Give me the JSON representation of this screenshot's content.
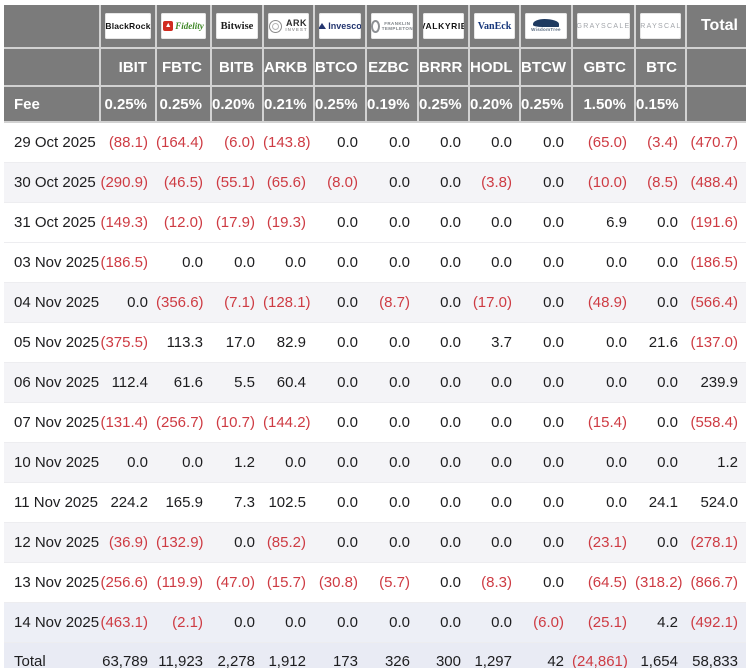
{
  "colors": {
    "header_bg": "#7b7b7b",
    "negative_text": "#ce3b43",
    "value_text": "#1d1d1f",
    "stripe_bg": "#f4f4f7",
    "total_row_bg": "#e9ebf4"
  },
  "chart_data": {
    "type": "table",
    "fee_label": "Fee",
    "total_label": "Total",
    "columns": [
      {
        "ticker": "IBIT",
        "fee": "0.25%",
        "brand": "BlackRock",
        "logo_style": "blackrock"
      },
      {
        "ticker": "FBTC",
        "fee": "0.25%",
        "brand": "Fidelity",
        "logo_style": "fidelity"
      },
      {
        "ticker": "BITB",
        "fee": "0.20%",
        "brand": "Bitwise",
        "logo_style": "bitwise"
      },
      {
        "ticker": "ARKB",
        "fee": "0.21%",
        "brand": "ARK",
        "brand_sub": "INVEST",
        "logo_style": "ark"
      },
      {
        "ticker": "BTCO",
        "fee": "0.25%",
        "brand": "Invesco",
        "logo_style": "invesco"
      },
      {
        "ticker": "EZBC",
        "fee": "0.19%",
        "brand": "FRANKLIN",
        "brand_sub": "TEMPLETON",
        "logo_style": "franklin"
      },
      {
        "ticker": "BRRR",
        "fee": "0.25%",
        "brand": "VALKYRIE",
        "logo_style": "valkyrie"
      },
      {
        "ticker": "HODL",
        "fee": "0.20%",
        "brand": "VanEck",
        "logo_style": "vaneck"
      },
      {
        "ticker": "BTCW",
        "fee": "0.25%",
        "brand": "WisdomTree",
        "logo_style": "wisdomtree"
      },
      {
        "ticker": "GBTC",
        "fee": "1.50%",
        "brand": "GRAYSCALE",
        "logo_style": "grayscale"
      },
      {
        "ticker": "BTC",
        "fee": "0.15%",
        "brand": "GRAYSCALE",
        "logo_style": "grayscale"
      }
    ],
    "rows": [
      {
        "date": "29 Oct 2025",
        "values": [
          "(88.1)",
          "(164.4)",
          "(6.0)",
          "(143.8)",
          "0.0",
          "0.0",
          "0.0",
          "0.0",
          "0.0",
          "(65.0)",
          "(3.4)",
          "(470.7)"
        ]
      },
      {
        "date": "30 Oct 2025",
        "values": [
          "(290.9)",
          "(46.5)",
          "(55.1)",
          "(65.6)",
          "(8.0)",
          "0.0",
          "0.0",
          "(3.8)",
          "0.0",
          "(10.0)",
          "(8.5)",
          "(488.4)"
        ]
      },
      {
        "date": "31 Oct 2025",
        "values": [
          "(149.3)",
          "(12.0)",
          "(17.9)",
          "(19.3)",
          "0.0",
          "0.0",
          "0.0",
          "0.0",
          "0.0",
          "6.9",
          "0.0",
          "(191.6)"
        ]
      },
      {
        "date": "03 Nov 2025",
        "values": [
          "(186.5)",
          "0.0",
          "0.0",
          "0.0",
          "0.0",
          "0.0",
          "0.0",
          "0.0",
          "0.0",
          "0.0",
          "0.0",
          "(186.5)"
        ]
      },
      {
        "date": "04 Nov 2025",
        "values": [
          "0.0",
          "(356.6)",
          "(7.1)",
          "(128.1)",
          "0.0",
          "(8.7)",
          "0.0",
          "(17.0)",
          "0.0",
          "(48.9)",
          "0.0",
          "(566.4)"
        ]
      },
      {
        "date": "05 Nov 2025",
        "values": [
          "(375.5)",
          "113.3",
          "17.0",
          "82.9",
          "0.0",
          "0.0",
          "0.0",
          "3.7",
          "0.0",
          "0.0",
          "21.6",
          "(137.0)"
        ]
      },
      {
        "date": "06 Nov 2025",
        "values": [
          "112.4",
          "61.6",
          "5.5",
          "60.4",
          "0.0",
          "0.0",
          "0.0",
          "0.0",
          "0.0",
          "0.0",
          "0.0",
          "239.9"
        ]
      },
      {
        "date": "07 Nov 2025",
        "values": [
          "(131.4)",
          "(256.7)",
          "(10.7)",
          "(144.2)",
          "0.0",
          "0.0",
          "0.0",
          "0.0",
          "0.0",
          "(15.4)",
          "0.0",
          "(558.4)"
        ]
      },
      {
        "date": "10 Nov 2025",
        "values": [
          "0.0",
          "0.0",
          "1.2",
          "0.0",
          "0.0",
          "0.0",
          "0.0",
          "0.0",
          "0.0",
          "0.0",
          "0.0",
          "1.2"
        ]
      },
      {
        "date": "11 Nov 2025",
        "values": [
          "224.2",
          "165.9",
          "7.3",
          "102.5",
          "0.0",
          "0.0",
          "0.0",
          "0.0",
          "0.0",
          "0.0",
          "24.1",
          "524.0"
        ]
      },
      {
        "date": "12 Nov 2025",
        "values": [
          "(36.9)",
          "(132.9)",
          "0.0",
          "(85.2)",
          "0.0",
          "0.0",
          "0.0",
          "0.0",
          "0.0",
          "(23.1)",
          "0.0",
          "(278.1)"
        ]
      },
      {
        "date": "13 Nov 2025",
        "values": [
          "(256.6)",
          "(119.9)",
          "(47.0)",
          "(15.7)",
          "(30.8)",
          "(5.7)",
          "0.0",
          "(8.3)",
          "0.0",
          "(64.5)",
          "(318.2)",
          "(866.7)"
        ]
      },
      {
        "date": "14 Nov 2025",
        "values": [
          "(463.1)",
          "(2.1)",
          "0.0",
          "0.0",
          "0.0",
          "0.0",
          "0.0",
          "0.0",
          "(6.0)",
          "(25.1)",
          "4.2",
          "(492.1)"
        ]
      }
    ],
    "total_row": {
      "label": "Total",
      "values": [
        "63,789",
        "11,923",
        "2,278",
        "1,912",
        "173",
        "326",
        "300",
        "1,297",
        "42",
        "(24,861)",
        "1,654",
        "58,833"
      ]
    }
  }
}
